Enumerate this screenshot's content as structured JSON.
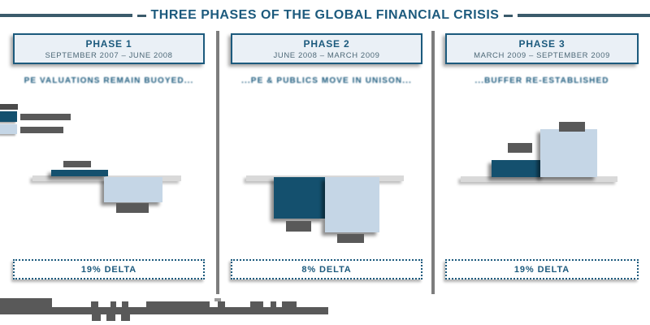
{
  "title": "THREE PHASES OF THE GLOBAL FINANCIAL CRISIS",
  "colors": {
    "accent_teal": "#1c5a7d",
    "bar_dark_teal": "#14506e",
    "bar_light_blue": "#c5d6e6",
    "header_box_bg": "#eaf0f6",
    "redacted_text_gray": "#595959",
    "baseline_gray": "#d9d9d9",
    "divider_gray": "#7d7d7d"
  },
  "legend": {
    "items": [
      {
        "name": "dark-teal-series",
        "swatch_color": "#14506e",
        "label": "",
        "label_redacted": true
      },
      {
        "name": "light-blue-series",
        "swatch_color": "#c5d6e6",
        "label": "",
        "label_redacted": true
      }
    ]
  },
  "phases": [
    {
      "label": "PHASE 1",
      "date_range": "SEPTEMBER 2007 – JUNE 2008",
      "subtitle": "PE VALUATIONS REMAIN BUOYED...",
      "delta_label": "19% DELTA"
    },
    {
      "label": "PHASE 2",
      "date_range": "JUNE 2008 – MARCH 2009",
      "subtitle": "...PE & PUBLICS MOVE IN UNISON...",
      "delta_label": "8% DELTA"
    },
    {
      "label": "PHASE 3",
      "date_range": "MARCH 2009 – SEPTEMBER 2009",
      "subtitle": "...BUFFER RE-ESTABLISHED",
      "delta_label": "19% DELTA"
    }
  ],
  "chart_data": [
    {
      "type": "bar",
      "title": "PHASE 1",
      "x_range_label": "SEPTEMBER 2007 – JUNE 2008",
      "categories": [
        "dark-teal series",
        "light-blue series"
      ],
      "series": [
        {
          "name": "dark-teal series",
          "value_pct": 4
        },
        {
          "name": "light-blue series",
          "value_pct": -15
        }
      ],
      "baseline": 0,
      "delta": "19% DELTA",
      "values_estimated_from_bar_heights": true,
      "data_labels_redacted": true,
      "legend_position": "left",
      "grid": false
    },
    {
      "type": "bar",
      "title": "PHASE 2",
      "x_range_label": "JUNE 2008 – MARCH 2009",
      "categories": [
        "dark-teal series",
        "light-blue series"
      ],
      "series": [
        {
          "name": "dark-teal series",
          "value_pct": -25
        },
        {
          "name": "light-blue series",
          "value_pct": -33
        }
      ],
      "baseline": 0,
      "delta": "8% DELTA",
      "values_estimated_from_bar_heights": true,
      "data_labels_redacted": true,
      "legend_position": "left",
      "grid": false
    },
    {
      "type": "bar",
      "title": "PHASE 3",
      "x_range_label": "MARCH 2009 – SEPTEMBER 2009",
      "categories": [
        "dark-teal series",
        "light-blue series"
      ],
      "series": [
        {
          "name": "dark-teal series",
          "value_pct": 10
        },
        {
          "name": "light-blue series",
          "value_pct": 29
        }
      ],
      "baseline": 0,
      "delta": "19% DELTA",
      "values_estimated_from_bar_heights": true,
      "data_labels_redacted": true,
      "legend_position": "left",
      "grid": false
    }
  ],
  "footer": {
    "redacted": true
  }
}
